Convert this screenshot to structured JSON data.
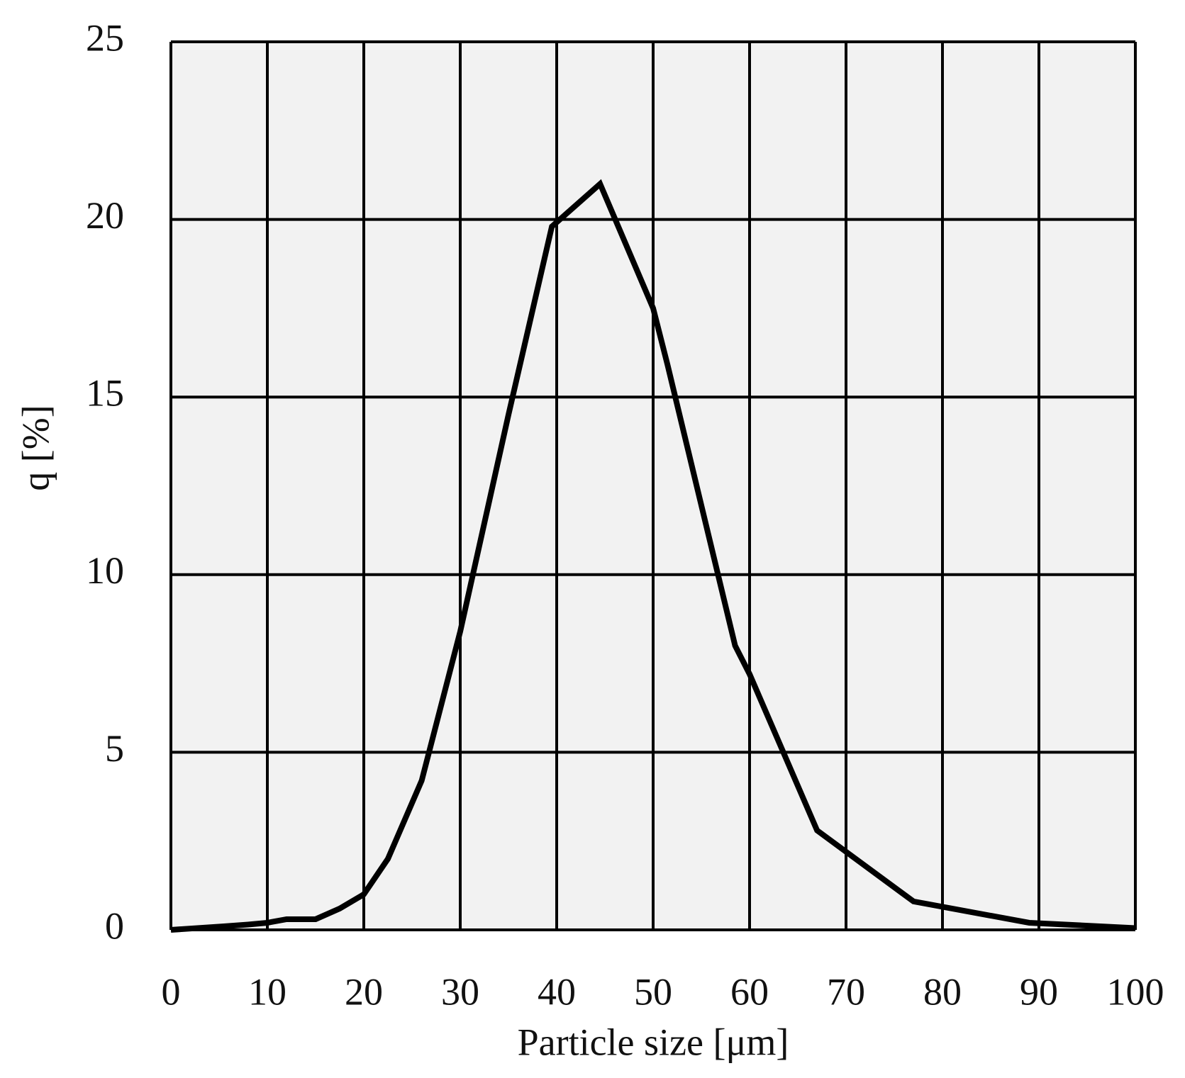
{
  "chart_data": {
    "type": "line",
    "x_label": "Particle size [μm]",
    "y_label": "q [%]",
    "x": [
      0,
      5.5,
      8,
      10,
      12,
      15,
      17.5,
      20,
      22.5,
      26,
      30,
      35,
      39.5,
      44.5,
      50,
      51.5,
      58.5,
      60,
      67,
      77,
      89,
      100
    ],
    "series": [
      {
        "color": "#000000",
        "values": [
          0,
          0.1,
          0.15,
          0.2,
          0.3,
          0.3,
          0.6,
          1.0,
          2.0,
          4.2,
          8.4,
          14.5,
          19.8,
          21.0,
          17.5,
          15.9,
          8.0,
          7.2,
          2.8,
          0.8,
          0.2,
          0.05
        ]
      }
    ],
    "xlim": [
      0,
      100
    ],
    "xticks": [
      0,
      10,
      20,
      30,
      40,
      50,
      60,
      70,
      80,
      90,
      100
    ],
    "ylim": [
      0,
      25
    ],
    "yticks": [
      0,
      5,
      10,
      15,
      20,
      25
    ],
    "grid": true
  }
}
